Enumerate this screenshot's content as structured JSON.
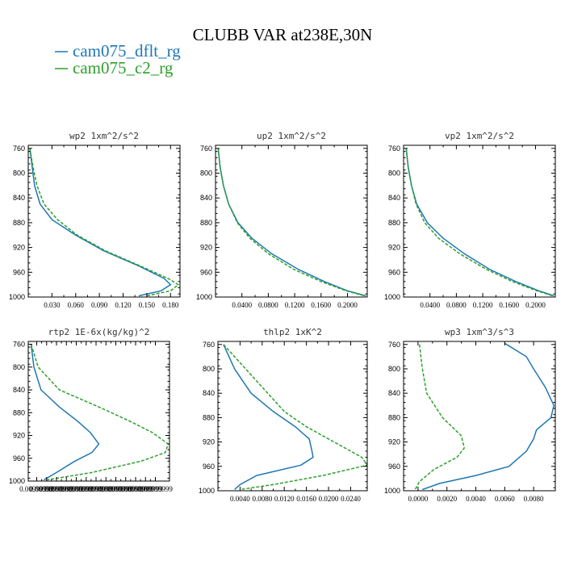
{
  "figure": {
    "title": "CLUBB VAR at238E,30N"
  },
  "legend": [
    {
      "name": "cam075_dflt_rg",
      "color": "#1f77b4",
      "dash": "solid"
    },
    {
      "name": "cam075_c2_rg",
      "color": "#2ca02c",
      "dash": "dashed"
    }
  ],
  "chart_data": [
    {
      "type": "line",
      "title": "wp2  1xm^2/s^2",
      "ylim": [
        1000,
        755
      ],
      "yticks": [
        1000,
        960,
        920,
        880,
        840,
        800,
        760
      ],
      "xlim": [
        0,
        0.192
      ],
      "xticks": [
        0.03,
        0.06,
        0.09,
        0.12,
        0.15,
        0.18
      ],
      "xticklabels": [
        "0.030",
        "0.060",
        "0.090",
        "0.120",
        "0.150",
        "0.180"
      ],
      "series": [
        {
          "name": "cam075_dflt_rg",
          "points": [
            [
              0.002,
              760
            ],
            [
              0.005,
              790
            ],
            [
              0.008,
              820
            ],
            [
              0.015,
              850
            ],
            [
              0.03,
              875
            ],
            [
              0.06,
              900
            ],
            [
              0.095,
              925
            ],
            [
              0.14,
              950
            ],
            [
              0.172,
              970
            ],
            [
              0.18,
              980
            ],
            [
              0.168,
              990
            ],
            [
              0.14,
              998
            ]
          ]
        },
        {
          "name": "cam075_c2_rg",
          "points": [
            [
              0.002,
              760
            ],
            [
              0.006,
              790
            ],
            [
              0.011,
              820
            ],
            [
              0.02,
              850
            ],
            [
              0.037,
              875
            ],
            [
              0.062,
              900
            ],
            [
              0.097,
              925
            ],
            [
              0.142,
              950
            ],
            [
              0.177,
              970
            ],
            [
              0.19,
              980
            ],
            [
              0.18,
              990
            ],
            [
              0.15,
              998
            ]
          ]
        }
      ]
    },
    {
      "type": "line",
      "title": "up2  1xm^2/s^2",
      "ylim": [
        1000,
        755
      ],
      "yticks": [
        1000,
        960,
        920,
        880,
        840,
        800,
        760
      ],
      "xlim": [
        0,
        0.23
      ],
      "xticks": [
        0.04,
        0.08,
        0.12,
        0.16,
        0.2
      ],
      "xticklabels": [
        "0.0400",
        "0.0800",
        "0.1200",
        "0.1600",
        "0.2000"
      ],
      "series": [
        {
          "name": "cam075_dflt_rg",
          "points": [
            [
              0.004,
              760
            ],
            [
              0.007,
              790
            ],
            [
              0.012,
              820
            ],
            [
              0.02,
              850
            ],
            [
              0.034,
              880
            ],
            [
              0.055,
              905
            ],
            [
              0.085,
              930
            ],
            [
              0.125,
              955
            ],
            [
              0.165,
              975
            ],
            [
              0.2,
              990
            ],
            [
              0.228,
              998
            ]
          ]
        },
        {
          "name": "cam075_c2_rg",
          "points": [
            [
              0.004,
              760
            ],
            [
              0.007,
              790
            ],
            [
              0.012,
              820
            ],
            [
              0.02,
              850
            ],
            [
              0.033,
              880
            ],
            [
              0.052,
              905
            ],
            [
              0.08,
              930
            ],
            [
              0.118,
              955
            ],
            [
              0.16,
              975
            ],
            [
              0.198,
              990
            ],
            [
              0.226,
              998
            ]
          ]
        }
      ]
    },
    {
      "type": "line",
      "title": "vp2  1xm^2/s^2",
      "ylim": [
        1000,
        755
      ],
      "yticks": [
        1000,
        960,
        920,
        880,
        840,
        800,
        760
      ],
      "xlim": [
        0,
        0.23
      ],
      "xticks": [
        0.04,
        0.08,
        0.12,
        0.16,
        0.2
      ],
      "xticklabels": [
        "0.0400",
        "0.0800",
        "0.1200",
        "0.1600",
        "0.2000"
      ],
      "series": [
        {
          "name": "cam075_dflt_rg",
          "points": [
            [
              0.004,
              760
            ],
            [
              0.007,
              790
            ],
            [
              0.012,
              820
            ],
            [
              0.02,
              850
            ],
            [
              0.036,
              880
            ],
            [
              0.06,
              905
            ],
            [
              0.092,
              930
            ],
            [
              0.13,
              955
            ],
            [
              0.17,
              975
            ],
            [
              0.205,
              990
            ],
            [
              0.228,
              998
            ]
          ]
        },
        {
          "name": "cam075_c2_rg",
          "points": [
            [
              0.004,
              760
            ],
            [
              0.007,
              790
            ],
            [
              0.012,
              820
            ],
            [
              0.019,
              850
            ],
            [
              0.032,
              880
            ],
            [
              0.053,
              905
            ],
            [
              0.085,
              930
            ],
            [
              0.125,
              955
            ],
            [
              0.165,
              975
            ],
            [
              0.202,
              990
            ],
            [
              0.226,
              998
            ]
          ]
        }
      ]
    },
    {
      "type": "line",
      "title": "rtp2  1E-6x(kg/kg)^2",
      "ylim": [
        1000,
        755
      ],
      "yticks": [
        1000,
        960,
        920,
        880,
        840,
        800,
        760
      ],
      "xlim": [
        0,
        1
      ],
      "xticks": [
        0.06,
        0.13,
        0.2,
        0.27,
        0.34,
        0.41,
        0.48,
        0.55,
        0.62,
        0.69,
        0.76,
        0.83,
        0.9
      ],
      "xticklabels": [
        "0.00999999",
        "0.00999999",
        "0.00999999",
        "0.00999999",
        "0.00999999",
        "0.00999999",
        "0.00999999",
        "0.00999999",
        "0.00999999",
        "0.00999999",
        "0.00999999",
        "0.00999999",
        "0.00999999"
      ],
      "series": [
        {
          "name": "cam075_dflt_rg",
          "points": [
            [
              0.02,
              760
            ],
            [
              0.04,
              800
            ],
            [
              0.09,
              840
            ],
            [
              0.22,
              870
            ],
            [
              0.35,
              895
            ],
            [
              0.44,
              915
            ],
            [
              0.5,
              935
            ],
            [
              0.45,
              950
            ],
            [
              0.33,
              965
            ],
            [
              0.2,
              985
            ],
            [
              0.11,
              998
            ]
          ]
        },
        {
          "name": "cam075_c2_rg",
          "points": [
            [
              0.02,
              760
            ],
            [
              0.07,
              800
            ],
            [
              0.22,
              840
            ],
            [
              0.5,
              870
            ],
            [
              0.72,
              895
            ],
            [
              0.88,
              915
            ],
            [
              0.99,
              935
            ],
            [
              0.97,
              950
            ],
            [
              0.8,
              965
            ],
            [
              0.45,
              985
            ],
            [
              0.13,
              998
            ]
          ]
        }
      ]
    },
    {
      "type": "line",
      "title": "thlp2  1xK^2",
      "ylim": [
        1000,
        755
      ],
      "yticks": [
        1000,
        960,
        920,
        880,
        840,
        800,
        760
      ],
      "xlim": [
        0,
        0.027
      ],
      "xticks": [
        0.004,
        0.008,
        0.012,
        0.016,
        0.02,
        0.024
      ],
      "xticklabels": [
        "0.0040",
        "0.0080",
        "0.0120",
        "0.0160",
        "0.0200",
        "0.0240"
      ],
      "series": [
        {
          "name": "cam075_dflt_rg",
          "points": [
            [
              0.001,
              760
            ],
            [
              0.003,
              800
            ],
            [
              0.006,
              840
            ],
            [
              0.01,
              870
            ],
            [
              0.014,
              895
            ],
            [
              0.0165,
              915
            ],
            [
              0.017,
              935
            ],
            [
              0.0172,
              945
            ],
            [
              0.015,
              958
            ],
            [
              0.007,
              975
            ],
            [
              0.004,
              990
            ],
            [
              0.003,
              998
            ]
          ]
        },
        {
          "name": "cam075_c2_rg",
          "points": [
            [
              0.001,
              760
            ],
            [
              0.005,
              800
            ],
            [
              0.009,
              840
            ],
            [
              0.012,
              870
            ],
            [
              0.016,
              895
            ],
            [
              0.02,
              915
            ],
            [
              0.024,
              935
            ],
            [
              0.026,
              945
            ],
            [
              0.027,
              958
            ],
            [
              0.019,
              975
            ],
            [
              0.01,
              990
            ],
            [
              0.004,
              998
            ]
          ]
        }
      ]
    },
    {
      "type": "line",
      "title": "wp3  1xm^3/s^3",
      "ylim": [
        1000,
        755
      ],
      "yticks": [
        1000,
        960,
        920,
        880,
        840,
        800,
        760
      ],
      "xlim": [
        -0.001,
        0.0095
      ],
      "xticks": [
        0.0,
        0.002,
        0.004,
        0.006,
        0.008
      ],
      "xticklabels": [
        "0.0000",
        "0.0020",
        "0.0040",
        "0.0060",
        "0.0080"
      ],
      "series": [
        {
          "name": "cam075_dflt_rg",
          "points": [
            [
              0.006,
              758
            ],
            [
              0.0075,
              780
            ],
            [
              0.008,
              800
            ],
            [
              0.0088,
              830
            ],
            [
              0.0094,
              860
            ],
            [
              0.0092,
              880
            ],
            [
              0.0082,
              900
            ],
            [
              0.008,
              915
            ],
            [
              0.0075,
              935
            ],
            [
              0.0063,
              960
            ],
            [
              0.004,
              975
            ],
            [
              0.0015,
              988
            ],
            [
              0.0003,
              998
            ]
          ]
        },
        {
          "name": "cam075_c2_rg",
          "points": [
            [
              0.0001,
              760
            ],
            [
              0.0003,
              800
            ],
            [
              0.0006,
              840
            ],
            [
              0.0017,
              880
            ],
            [
              0.003,
              910
            ],
            [
              0.0032,
              930
            ],
            [
              0.0027,
              945
            ],
            [
              0.0011,
              965
            ],
            [
              0.0001,
              985
            ],
            [
              -0.0002,
              998
            ]
          ]
        }
      ]
    }
  ]
}
